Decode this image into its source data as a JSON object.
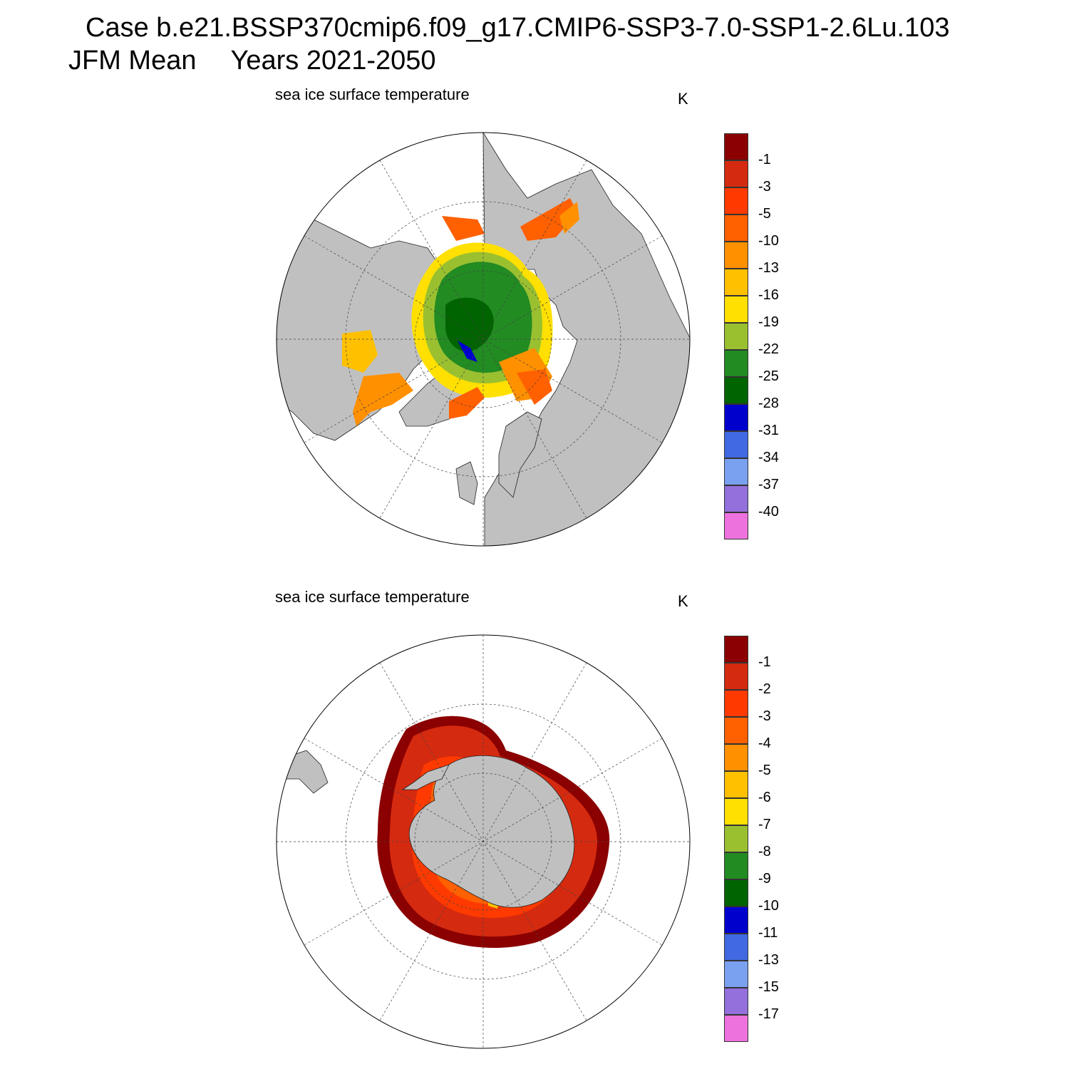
{
  "header": {
    "case_line": "Case b.e21.BSSP370cmip6.f09_g17.CMIP6-SSP3-7.0-SSP1-2.6Lu.103",
    "season": "JFM Mean",
    "years": "Years 2021-2050"
  },
  "colors": [
    "#8b0000",
    "#d42a10",
    "#ff3a00",
    "#ff6000",
    "#ff9000",
    "#ffc000",
    "#ffe000",
    "#9ac030",
    "#228b22",
    "#006400",
    "#0000cd",
    "#4169e1",
    "#7aa0f0",
    "#9370db",
    "#ee72dd"
  ],
  "colors_note_land": "#c0c0c0",
  "north": {
    "title": "sea ice surface temperature",
    "unit": "K",
    "levels": [
      "-1",
      "-3",
      "-5",
      "-10",
      "-13",
      "-16",
      "-19",
      "-22",
      "-25",
      "-28",
      "-31",
      "-34",
      "-37",
      "-40"
    ]
  },
  "south": {
    "title": "sea ice surface temperature",
    "unit": "K",
    "levels": [
      "-1",
      "-2",
      "-3",
      "-4",
      "-5",
      "-6",
      "-7",
      "-8",
      "-9",
      "-10",
      "-11",
      "-13",
      "-15",
      "-17"
    ]
  }
}
